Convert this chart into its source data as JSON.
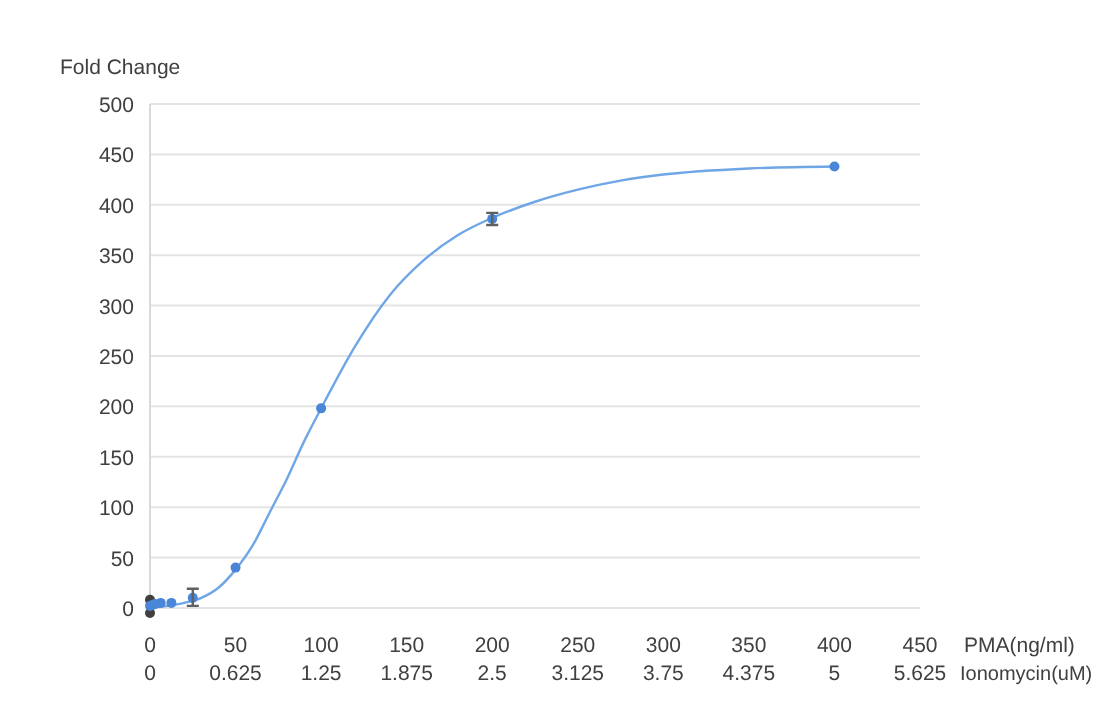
{
  "chart_data": {
    "type": "scatter",
    "ylabel": "Fold Change",
    "xlabel": "PMA(ng/ml)",
    "x2label": "Ionomycin(uM)",
    "xlim": [
      0,
      450
    ],
    "xticks": [
      0,
      50,
      100,
      150,
      200,
      250,
      300,
      350,
      400,
      450
    ],
    "x2lim": [
      0,
      5.625
    ],
    "x2ticks": [
      0,
      0.625,
      1.25,
      1.875,
      2.5,
      3.125,
      3.75,
      4.375,
      5,
      5.625
    ],
    "ylim": [
      -10,
      500
    ],
    "yticks": [
      0,
      50,
      100,
      150,
      200,
      250,
      300,
      350,
      400,
      450,
      500
    ],
    "grid": "y",
    "marker": "circle",
    "series": [
      {
        "type": "line",
        "color": "#6fa6e6",
        "marker": "none",
        "x": [
          0,
          10,
          20,
          30,
          40,
          50,
          60,
          70,
          80,
          90,
          100,
          120,
          140,
          160,
          180,
          200,
          225,
          250,
          275,
          300,
          350,
          400
        ],
        "values": [
          0,
          2,
          5,
          10,
          20,
          38,
          62,
          95,
          128,
          165,
          198,
          260,
          310,
          345,
          370,
          387,
          403,
          415,
          424,
          430,
          436,
          438
        ]
      },
      {
        "type": "scatter",
        "color": "#404040",
        "x": [
          0,
          0
        ],
        "values": [
          -5,
          8
        ]
      },
      {
        "color": "#4a86d8",
        "x": [
          0,
          1.5,
          3,
          6.25,
          12.5,
          25,
          50,
          100,
          200,
          400
        ],
        "values": [
          2,
          3,
          4,
          5,
          5,
          10,
          40,
          198,
          386,
          438
        ],
        "errors": [
          null,
          null,
          null,
          null,
          null,
          [
            2,
            19
          ],
          null,
          null,
          6,
          null
        ]
      }
    ]
  }
}
